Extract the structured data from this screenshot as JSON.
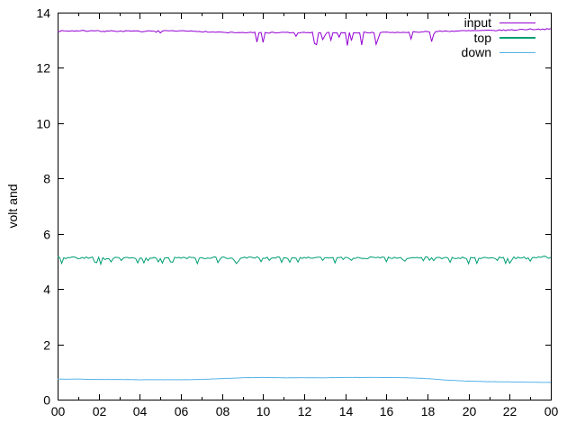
{
  "chart_data": {
    "type": "line",
    "title": "",
    "xlabel": "",
    "ylabel": "volt and",
    "xlim": [
      0,
      24
    ],
    "ylim": [
      0,
      14
    ],
    "grid": false,
    "background": "#ffffff",
    "border_color": "#000000",
    "text_color": "#000000",
    "legend_position": "top-right-inside",
    "x_major_ticks": [
      0,
      2,
      4,
      6,
      8,
      10,
      12,
      14,
      16,
      18,
      20,
      22,
      24
    ],
    "x_tick_labels": [
      "00",
      "02",
      "04",
      "06",
      "08",
      "10",
      "12",
      "14",
      "16",
      "18",
      "20",
      "22",
      "00"
    ],
    "x_minor_ticks": [
      1,
      3,
      5,
      7,
      9,
      11,
      13,
      15,
      17,
      19,
      21,
      23
    ],
    "y_major_ticks": [
      0,
      2,
      4,
      6,
      8,
      10,
      12,
      14
    ],
    "y_tick_labels": [
      "0",
      "2",
      "4",
      "6",
      "8",
      "10",
      "12",
      "14"
    ],
    "sample_step_hours": 0.1,
    "noise_seed": 7,
    "series": [
      {
        "name": "input",
        "color": "#9400d3",
        "baseline_hours": [
          0,
          1,
          2,
          3,
          4,
          5,
          6,
          7,
          8,
          9,
          10,
          11,
          12,
          13,
          14,
          15,
          16,
          17,
          18,
          19,
          20,
          21,
          22,
          23,
          24
        ],
        "baseline": [
          13.33,
          13.34,
          13.33,
          13.33,
          13.32,
          13.33,
          13.33,
          13.32,
          13.28,
          13.28,
          13.27,
          13.28,
          13.27,
          13.28,
          13.27,
          13.28,
          13.28,
          13.29,
          13.31,
          13.33,
          13.34,
          13.35,
          13.37,
          13.4,
          13.4
        ],
        "noise_amp": 0.02,
        "spikes": [
          {
            "from": 0.5,
            "to": 7.2,
            "prob": 0.07,
            "max_depth": 0.1
          },
          {
            "from": 7.5,
            "to": 18.5,
            "prob": 0.22,
            "max_depth": 0.45
          }
        ]
      },
      {
        "name": "top",
        "color": "#009e73",
        "baseline_hours": [
          0,
          1,
          2,
          3,
          4,
          5,
          6,
          7,
          8,
          9,
          10,
          11,
          12,
          13,
          14,
          15,
          16,
          17,
          18,
          19,
          20,
          21,
          22,
          23,
          24
        ],
        "baseline": [
          5.13,
          5.13,
          5.13,
          5.13,
          5.13,
          5.13,
          5.13,
          5.13,
          5.13,
          5.13,
          5.13,
          5.13,
          5.13,
          5.13,
          5.13,
          5.13,
          5.13,
          5.13,
          5.13,
          5.13,
          5.13,
          5.13,
          5.13,
          5.13,
          5.17
        ],
        "noise_amp": 0.035,
        "spikes": [
          {
            "from": 0,
            "to": 24,
            "prob": 0.18,
            "max_depth": 0.22
          }
        ]
      },
      {
        "name": "down",
        "color": "#56b4e9",
        "baseline_hours": [
          0,
          1,
          2,
          3,
          4,
          5,
          6,
          7,
          8,
          9,
          10,
          11,
          12,
          13,
          14,
          15,
          16,
          17,
          18,
          19,
          20,
          21,
          22,
          23,
          24
        ],
        "baseline": [
          0.74,
          0.74,
          0.73,
          0.73,
          0.72,
          0.72,
          0.72,
          0.73,
          0.76,
          0.79,
          0.8,
          0.79,
          0.79,
          0.79,
          0.8,
          0.8,
          0.8,
          0.79,
          0.76,
          0.7,
          0.67,
          0.65,
          0.64,
          0.63,
          0.62
        ],
        "noise_amp": 0.004,
        "spikes": []
      }
    ]
  }
}
